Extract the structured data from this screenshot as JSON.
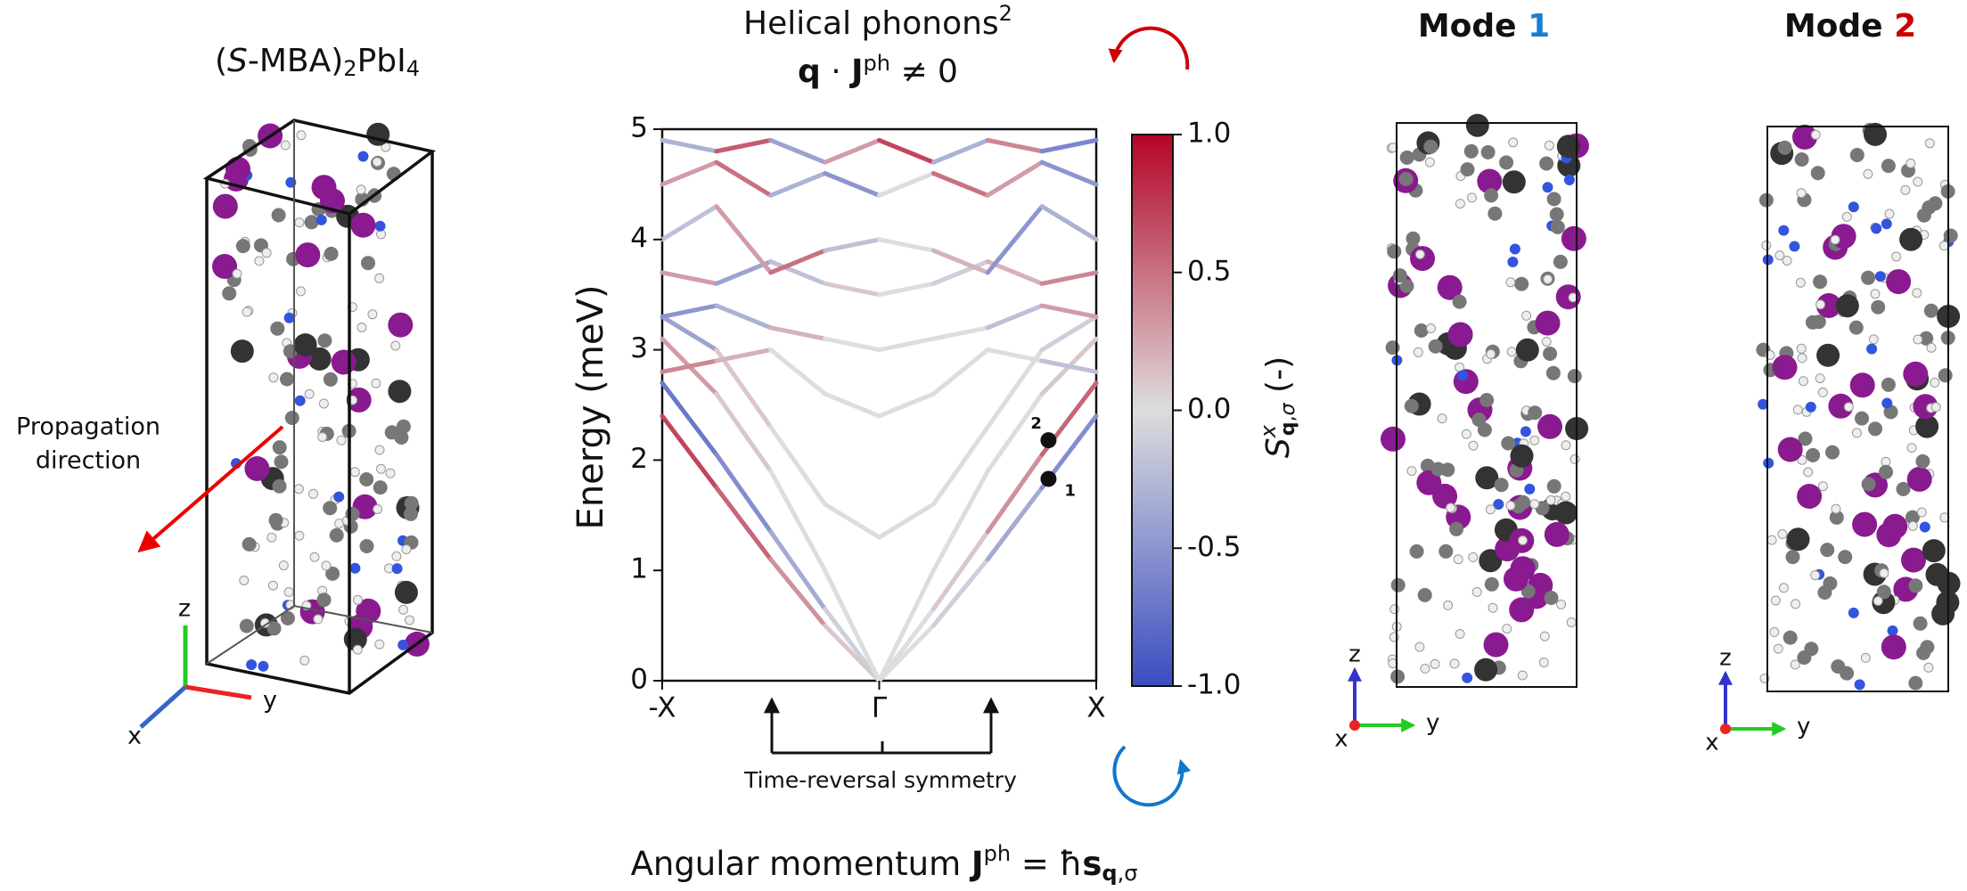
{
  "structure": {
    "title": [
      "(",
      "S",
      "-MBA)",
      "2",
      "PbI",
      "4"
    ],
    "annotation": [
      "Propagation",
      "direction"
    ],
    "axes": [
      "z",
      "y",
      "x"
    ]
  },
  "chart_data": {
    "type": "band",
    "title": [
      "Helical phonons",
      "2"
    ],
    "subtitle": [
      "q",
      " · ",
      "J",
      "ph",
      " ≠ 0"
    ],
    "y_label": "Energy (meV)",
    "colorbar_label": [
      "S",
      "x",
      "q",
      ",",
      "σ",
      " (-)"
    ],
    "x": [
      -1,
      -0.75,
      -0.5,
      -0.25,
      0,
      0.25,
      0.5,
      0.75,
      1
    ],
    "xlim": [
      -1,
      1
    ],
    "xticks": [
      {
        "value": -1,
        "label": "-X"
      },
      {
        "value": 0,
        "label": "Γ"
      },
      {
        "value": 1,
        "label": "X"
      }
    ],
    "ylim": [
      0,
      5
    ],
    "yticks": [
      0,
      1,
      2,
      3,
      4,
      5
    ],
    "clim": [
      -1,
      1
    ],
    "cticks": [
      {
        "value": 1,
        "label": "1.0"
      },
      0.5,
      {
        "value": 0,
        "label": "0.0"
      },
      -0.5,
      {
        "value": -1,
        "label": "-1.0"
      }
    ],
    "colormap": [
      "#3b4cc0",
      "#dddddd",
      "#b40426"
    ],
    "bands": [
      {
        "values": [
          2.4,
          1.75,
          1.1,
          0.5,
          0,
          0.5,
          1.1,
          1.75,
          2.4
        ],
        "spin": [
          0.7,
          0.55,
          0.35,
          0.1,
          0,
          -0.1,
          -0.35,
          -0.55,
          -0.7
        ]
      },
      {
        "values": [
          2.7,
          2.05,
          1.35,
          0.65,
          0,
          0.65,
          1.35,
          2.05,
          2.7
        ],
        "spin": [
          -0.7,
          -0.55,
          -0.35,
          -0.1,
          0,
          0.1,
          0.35,
          0.55,
          0.7
        ]
      },
      {
        "values": [
          3.1,
          2.6,
          1.9,
          1.0,
          0,
          1.0,
          1.9,
          2.6,
          3.1
        ],
        "spin": [
          0.3,
          0.1,
          0,
          0,
          0,
          0,
          0,
          0.1,
          -0.3
        ]
      },
      {
        "values": [
          3.3,
          3.0,
          2.3,
          1.6,
          1.3,
          1.6,
          2.3,
          3.0,
          3.3
        ],
        "spin": [
          -0.4,
          0.1,
          0,
          0,
          0,
          0,
          0,
          -0.1,
          0.4
        ]
      },
      {
        "values": [
          2.8,
          2.9,
          3.0,
          2.6,
          2.4,
          2.6,
          3.0,
          2.9,
          2.8
        ],
        "spin": [
          0.4,
          0.2,
          0,
          0,
          0,
          0,
          0,
          -0.2,
          -0.4
        ]
      },
      {
        "values": [
          3.3,
          3.4,
          3.2,
          3.1,
          3.0,
          3.1,
          3.2,
          3.4,
          3.3
        ],
        "spin": [
          -0.5,
          -0.3,
          0.2,
          0,
          0,
          0,
          -0.2,
          0.3,
          0.5
        ]
      },
      {
        "values": [
          3.7,
          3.6,
          3.8,
          3.6,
          3.5,
          3.6,
          3.8,
          3.6,
          3.7
        ],
        "spin": [
          0.3,
          -0.4,
          -0.2,
          0.1,
          0,
          -0.1,
          0.2,
          0.4,
          -0.3
        ]
      },
      {
        "values": [
          4.0,
          4.3,
          3.7,
          3.9,
          4.0,
          3.9,
          3.7,
          4.3,
          4.0
        ],
        "spin": [
          -0.2,
          0.3,
          0.5,
          -0.2,
          0,
          0.2,
          -0.5,
          -0.3,
          0.2
        ]
      },
      {
        "values": [
          4.5,
          4.7,
          4.4,
          4.6,
          4.4,
          4.6,
          4.4,
          4.7,
          4.5
        ],
        "spin": [
          0.3,
          0.5,
          -0.3,
          -0.5,
          0,
          0.5,
          0.3,
          -0.5,
          -0.3
        ]
      },
      {
        "values": [
          4.9,
          4.8,
          4.9,
          4.7,
          4.9,
          4.7,
          4.9,
          4.8,
          4.9
        ],
        "spin": [
          -0.3,
          0.6,
          -0.4,
          0.3,
          0.7,
          -0.3,
          0.4,
          -0.6,
          0.3
        ]
      }
    ],
    "points": [
      {
        "label": "1",
        "x": 0.78,
        "y": 1.83
      },
      {
        "label": "2",
        "x": 0.78,
        "y": 2.18
      }
    ],
    "annotation": "Time-reversal symmetry",
    "footer": [
      "Angular momentum ",
      "J",
      "ph",
      " = ħ",
      "s",
      "q",
      ",σ"
    ]
  },
  "modes": [
    {
      "title": [
        "Mode ",
        "1"
      ],
      "axes": [
        "z",
        "x",
        "y"
      ]
    },
    {
      "title": [
        "Mode ",
        "2"
      ],
      "axes": [
        "z",
        "x",
        "y"
      ]
    }
  ]
}
